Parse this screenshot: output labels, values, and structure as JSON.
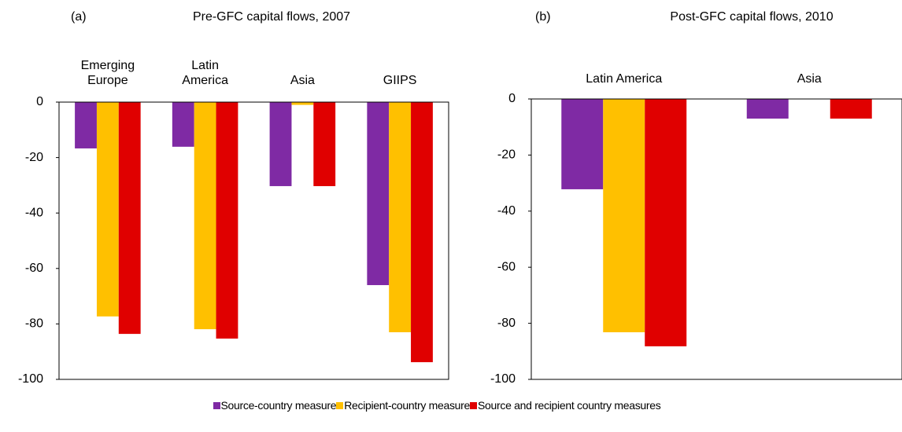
{
  "chart_data": [
    {
      "type": "bar",
      "panel": "(a)",
      "title": "Pre-GFC capital flows, 2007",
      "categories": [
        "Emerging Europe",
        "Latin America",
        "Asia",
        "GIIPS"
      ],
      "series": [
        {
          "name": "Source-country measure",
          "color": "#7f2aa4",
          "values": [
            -16.7,
            -16.1,
            -30.3,
            -66
          ]
        },
        {
          "name": "Recipient-country measure",
          "color": "#ffc000",
          "values": [
            -77.3,
            -81.9,
            -1,
            -83
          ]
        },
        {
          "name": "Source and recipient country measures",
          "color": "#e00000",
          "values": [
            -83.6,
            -85.3,
            -30.3,
            -93.8
          ]
        }
      ],
      "ylim": [
        -100,
        0
      ],
      "yticks": [
        0,
        -20,
        -40,
        -60,
        -80,
        -100
      ],
      "grid": false
    },
    {
      "type": "bar",
      "panel": "(b)",
      "title": "Post-GFC capital flows, 2010",
      "categories": [
        "Latin America",
        "Asia"
      ],
      "series": [
        {
          "name": "Source-country measure",
          "color": "#7f2aa4",
          "values": [
            -32.2,
            -7
          ]
        },
        {
          "name": "Recipient-country measure",
          "color": "#ffc000",
          "values": [
            -83.2,
            null
          ]
        },
        {
          "name": "Source and recipient country measures",
          "color": "#e00000",
          "values": [
            -88.2,
            -7
          ]
        }
      ],
      "ylim": [
        -100,
        0
      ],
      "yticks": [
        0,
        -20,
        -40,
        -60,
        -80,
        -100
      ],
      "grid": false
    }
  ]
}
